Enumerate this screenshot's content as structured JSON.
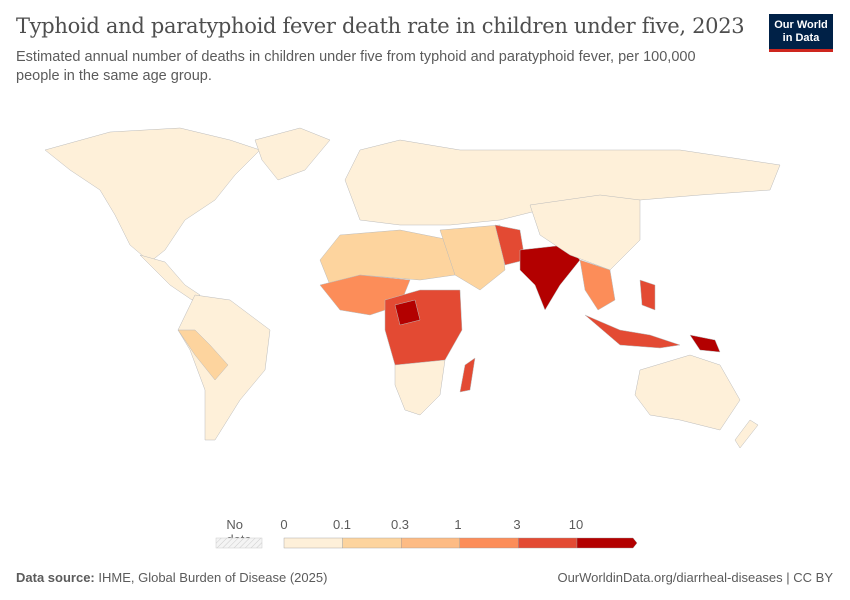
{
  "header": {
    "title": "Typhoid and paratyphoid fever death rate in children under five, 2023",
    "subtitle": "Estimated annual number of deaths in children under five from typhoid and paratyphoid fever, per 100,000 people in the same age group.",
    "logo_text": "Our World in Data"
  },
  "legend": {
    "no_data_label": "No data",
    "bins": [
      "0",
      "0.1",
      "0.3",
      "1",
      "3",
      "10"
    ],
    "colors": [
      "#fef0d9",
      "#fdd49e",
      "#fdbb84",
      "#fc8d59",
      "#e34a33",
      "#b30000"
    ],
    "no_data_color": "#e8e8e8"
  },
  "footer": {
    "source_label": "Data source:",
    "source": "IHME, Global Burden of Disease (2025)",
    "link": "OurWorldinData.org/diarrheal-diseases",
    "license": "CC BY"
  }
}
